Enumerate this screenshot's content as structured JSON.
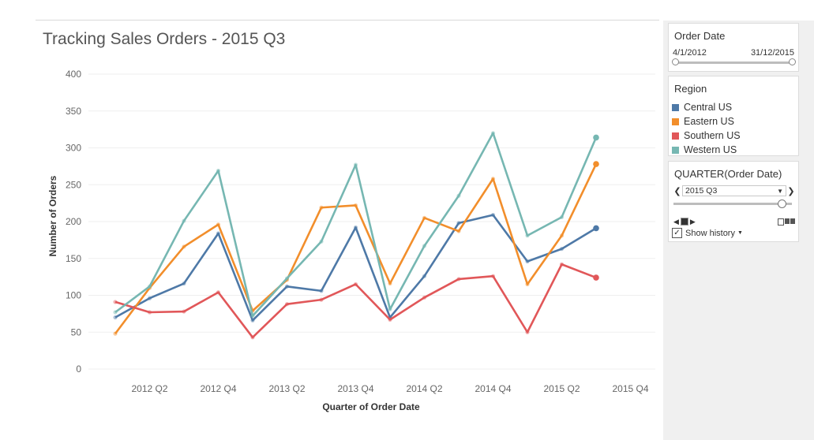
{
  "title": "Tracking Sales Orders - 2015 Q3",
  "filters": {
    "order_date": {
      "title": "Order Date",
      "start": "4/1/2012",
      "end": "31/12/2015"
    },
    "region": {
      "title": "Region",
      "items": [
        {
          "label": "Central US",
          "color": "#4e79a7"
        },
        {
          "label": "Eastern US",
          "color": "#f28e2b"
        },
        {
          "label": "Southern US",
          "color": "#e15759"
        },
        {
          "label": "Western US",
          "color": "#76b7b2"
        }
      ]
    },
    "quarter": {
      "title": "QUARTER(Order Date)",
      "value": "2015 Q3",
      "show_history": "Show history",
      "checked": true
    }
  },
  "chart_data": {
    "type": "line",
    "xlabel": "Quarter of Order Date",
    "ylabel": "Number of Orders",
    "ylim": [
      0,
      400
    ],
    "yticks": [
      0,
      50,
      100,
      150,
      200,
      250,
      300,
      350,
      400
    ],
    "x_tick_labels": [
      "2012 Q2",
      "2012 Q4",
      "2013 Q2",
      "2013 Q4",
      "2014 Q2",
      "2014 Q4",
      "2015 Q2",
      "2015 Q4"
    ],
    "categories": [
      "2012 Q1",
      "2012 Q2",
      "2012 Q3",
      "2012 Q4",
      "2013 Q1",
      "2013 Q2",
      "2013 Q3",
      "2013 Q4",
      "2014 Q1",
      "2014 Q2",
      "2014 Q3",
      "2014 Q4",
      "2015 Q1",
      "2015 Q2",
      "2015 Q3"
    ],
    "series": [
      {
        "name": "Central US",
        "color": "#4e79a7",
        "values": [
          70,
          96,
          116,
          184,
          66,
          112,
          106,
          192,
          70,
          126,
          198,
          209,
          146,
          163,
          191
        ]
      },
      {
        "name": "Eastern US",
        "color": "#f28e2b",
        "values": [
          48,
          110,
          166,
          196,
          79,
          121,
          219,
          222,
          116,
          205,
          187,
          258,
          115,
          181,
          278
        ]
      },
      {
        "name": "Southern US",
        "color": "#e15759",
        "values": [
          91,
          77,
          78,
          104,
          43,
          88,
          94,
          115,
          67,
          97,
          122,
          126,
          50,
          142,
          124
        ]
      },
      {
        "name": "Western US",
        "color": "#76b7b2",
        "values": [
          77,
          112,
          201,
          269,
          72,
          123,
          173,
          277,
          81,
          167,
          235,
          320,
          181,
          206,
          314
        ]
      }
    ]
  }
}
